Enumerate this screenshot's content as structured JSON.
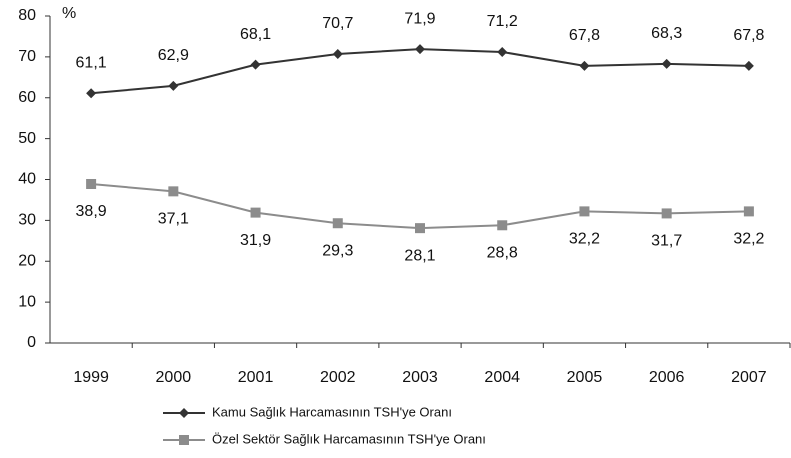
{
  "chart_data": {
    "type": "line",
    "y_label": "%",
    "categories": [
      "1999",
      "2000",
      "2001",
      "2002",
      "2003",
      "2004",
      "2005",
      "2006",
      "2007"
    ],
    "series": [
      {
        "name": "Kamu Sağlık Harcamasının TSH'ye Oranı",
        "color": "#333333",
        "marker": "diamond",
        "values": [
          61.1,
          62.9,
          68.1,
          70.7,
          71.9,
          71.2,
          67.8,
          68.3,
          67.8
        ],
        "value_labels": [
          "61,1",
          "62,9",
          "68,1",
          "70,7",
          "71,9",
          "71,2",
          "67,8",
          "68,3",
          "67,8"
        ]
      },
      {
        "name": "Özel Sektör Sağlık Harcamasının TSH'ye Oranı",
        "color": "#8c8c8c",
        "marker": "square",
        "values": [
          38.9,
          37.1,
          31.9,
          29.3,
          28.1,
          28.8,
          32.2,
          31.7,
          32.2
        ],
        "value_labels": [
          "38,9",
          "37,1",
          "31,9",
          "29,3",
          "28,1",
          "28,8",
          "32,2",
          "31,7",
          "32,2"
        ]
      }
    ],
    "ylim": [
      0,
      80
    ],
    "yticks": [
      0,
      10,
      20,
      30,
      40,
      50,
      60,
      70,
      80
    ],
    "grid": false
  }
}
